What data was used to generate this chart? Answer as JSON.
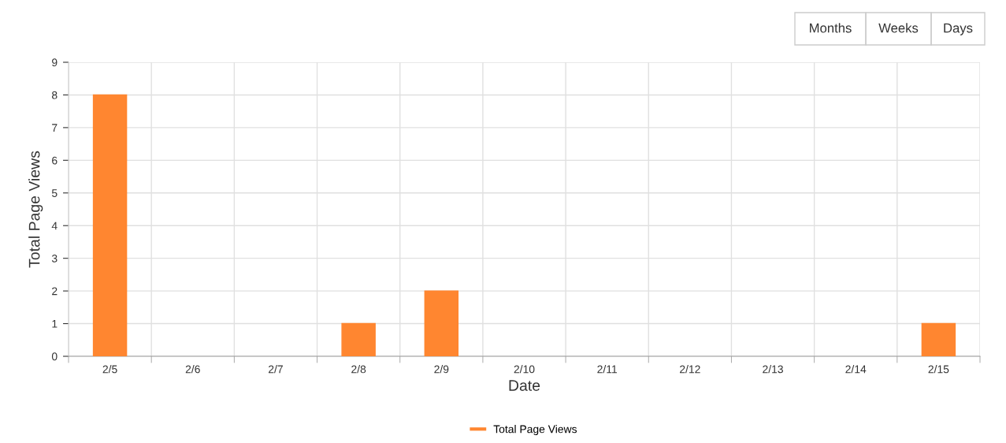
{
  "chart_data": {
    "type": "bar",
    "xlabel": "Date",
    "ylabel": "Total Page Views",
    "categories": [
      "2/5",
      "2/6",
      "2/7",
      "2/8",
      "2/9",
      "2/10",
      "2/11",
      "2/12",
      "2/13",
      "2/14",
      "2/15"
    ],
    "series": [
      {
        "name": "Total Page Views",
        "color": "#ff8630",
        "values": [
          8,
          0,
          0,
          1,
          2,
          0,
          0,
          0,
          0,
          0,
          1
        ]
      }
    ],
    "ylim": [
      0,
      9
    ],
    "yticks": [
      0,
      1,
      2,
      3,
      4,
      5,
      6,
      7,
      8,
      9
    ],
    "grid": true,
    "legend": "bottom",
    "annotations": [
      "Months",
      "Weeks",
      "Days"
    ]
  }
}
